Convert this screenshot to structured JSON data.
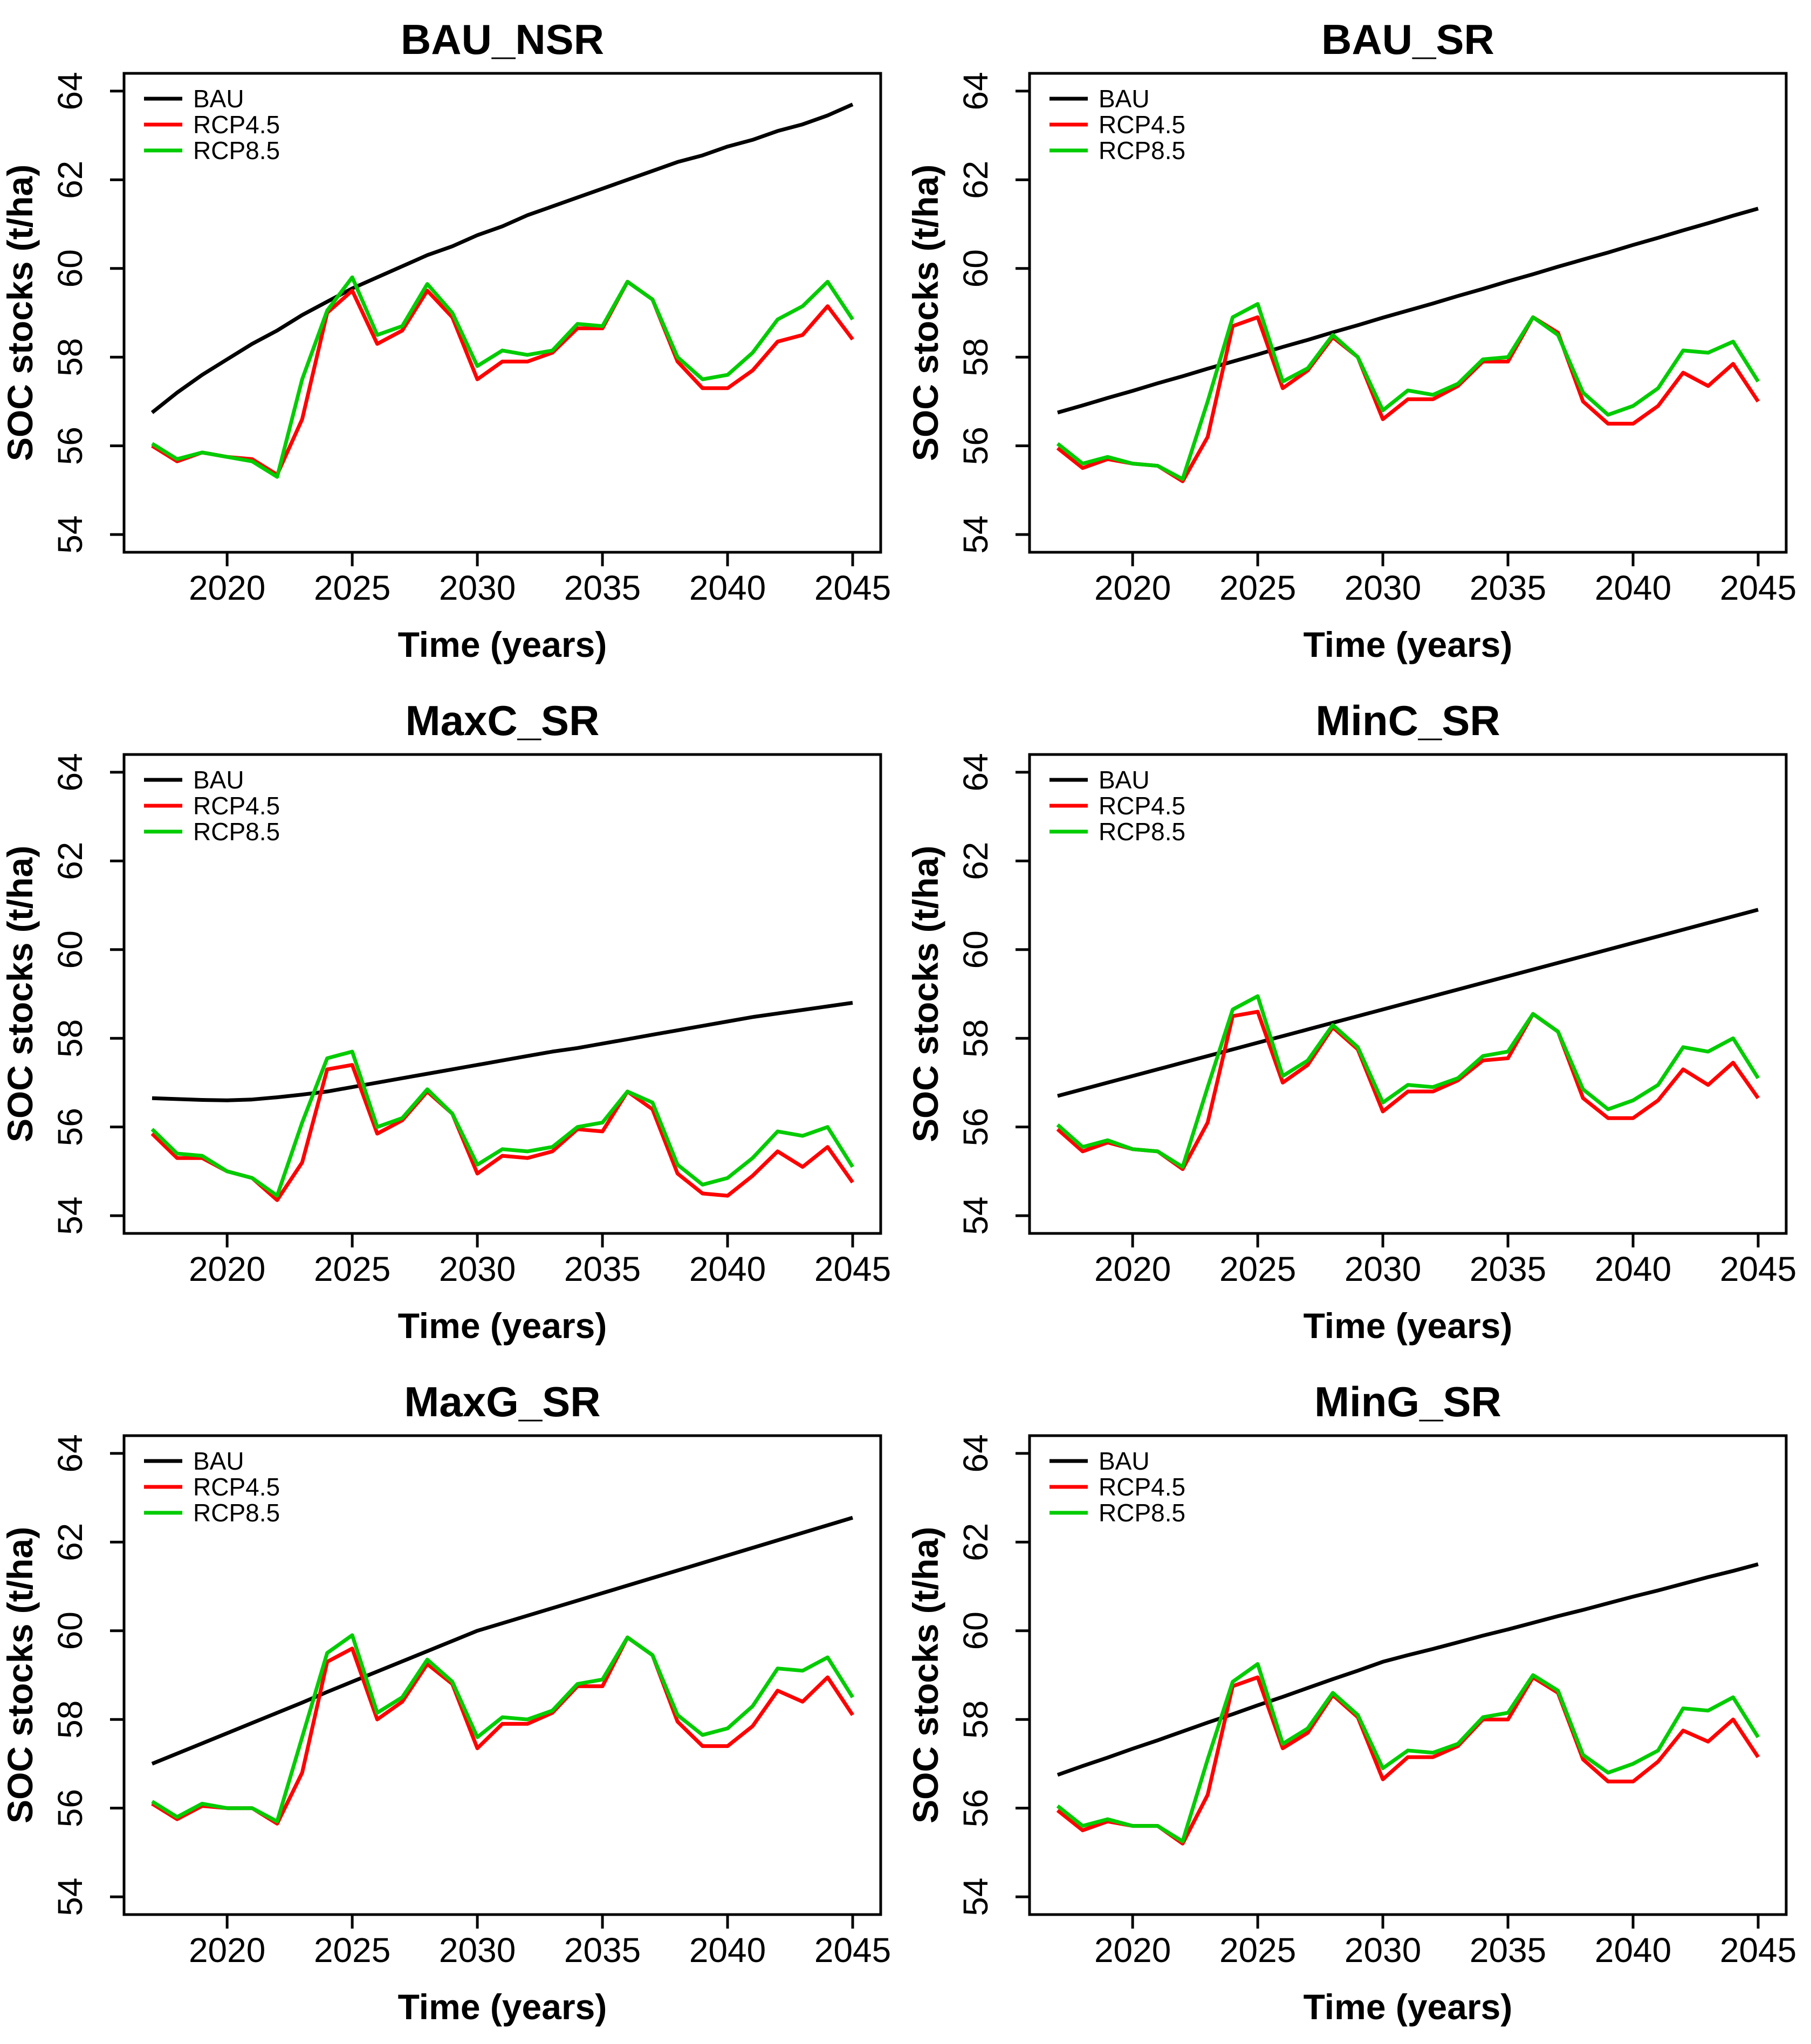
{
  "page": {
    "background": "#FFFFFF",
    "grid": {
      "columns": 2,
      "rows": 3
    }
  },
  "chart_data": [
    {
      "type": "line",
      "title": "BAU_NSR",
      "xlabel": "Time (years)",
      "ylabel": "SOC stocks (t/ha)",
      "x": [
        2017,
        2018,
        2019,
        2020,
        2021,
        2022,
        2023,
        2024,
        2025,
        2026,
        2027,
        2028,
        2029,
        2030,
        2031,
        2032,
        2033,
        2034,
        2035,
        2036,
        2037,
        2038,
        2039,
        2040,
        2041,
        2042,
        2043,
        2044,
        2045
      ],
      "xlim": [
        2015.88,
        2046.12
      ],
      "ylim": [
        53.6,
        64.4
      ],
      "xticks": [
        2020,
        2025,
        2030,
        2035,
        2040,
        2045
      ],
      "yticks": [
        54,
        56,
        58,
        60,
        62,
        64
      ],
      "grid": false,
      "legend": {
        "position": "top-left",
        "entries": [
          "BAU",
          "RCP4.5",
          "RCP8.5"
        ]
      },
      "series": [
        {
          "name": "BAU",
          "color": "#000000",
          "values": [
            56.75,
            57.2,
            57.6,
            57.95,
            58.3,
            58.6,
            58.95,
            59.25,
            59.55,
            59.8,
            60.05,
            60.3,
            60.5,
            60.75,
            60.95,
            61.2,
            61.4,
            61.6,
            61.8,
            62.0,
            62.2,
            62.4,
            62.55,
            62.75,
            62.9,
            63.1,
            63.25,
            63.45,
            63.7
          ]
        },
        {
          "name": "RCP4.5",
          "color": "#FF0000",
          "values": [
            56.0,
            55.65,
            55.85,
            55.75,
            55.7,
            55.35,
            56.6,
            59.0,
            59.5,
            58.3,
            58.6,
            59.5,
            58.9,
            57.5,
            57.9,
            57.9,
            58.1,
            58.65,
            58.65,
            59.7,
            59.3,
            57.9,
            57.3,
            57.3,
            57.7,
            58.35,
            58.5,
            59.15,
            58.4
          ]
        },
        {
          "name": "RCP8.5",
          "color": "#00CC00",
          "values": [
            56.05,
            55.7,
            55.85,
            55.75,
            55.65,
            55.3,
            57.5,
            59.05,
            59.8,
            58.5,
            58.7,
            59.65,
            59.0,
            57.8,
            58.15,
            58.05,
            58.15,
            58.75,
            58.7,
            59.7,
            59.3,
            58.0,
            57.5,
            57.6,
            58.1,
            58.85,
            59.15,
            59.7,
            58.85
          ]
        }
      ]
    },
    {
      "type": "line",
      "title": "BAU_SR",
      "xlabel": "Time (years)",
      "ylabel": "SOC stocks (t/ha)",
      "x": [
        2017,
        2018,
        2019,
        2020,
        2021,
        2022,
        2023,
        2024,
        2025,
        2026,
        2027,
        2028,
        2029,
        2030,
        2031,
        2032,
        2033,
        2034,
        2035,
        2036,
        2037,
        2038,
        2039,
        2040,
        2041,
        2042,
        2043,
        2044,
        2045
      ],
      "xlim": [
        2015.88,
        2046.12
      ],
      "ylim": [
        53.6,
        64.4
      ],
      "xticks": [
        2020,
        2025,
        2030,
        2035,
        2040,
        2045
      ],
      "yticks": [
        54,
        56,
        58,
        60,
        62,
        64
      ],
      "grid": false,
      "legend": {
        "position": "top-left",
        "entries": [
          "BAU",
          "RCP4.5",
          "RCP8.5"
        ]
      },
      "series": [
        {
          "name": "BAU",
          "color": "#000000",
          "values": [
            56.75,
            56.91,
            57.08,
            57.24,
            57.41,
            57.57,
            57.74,
            57.9,
            58.06,
            58.23,
            58.39,
            58.56,
            58.72,
            58.89,
            59.05,
            59.21,
            59.38,
            59.54,
            59.71,
            59.87,
            60.04,
            60.2,
            60.36,
            60.53,
            60.69,
            60.86,
            61.02,
            61.19,
            61.35
          ]
        },
        {
          "name": "RCP4.5",
          "color": "#FF0000",
          "values": [
            55.95,
            55.5,
            55.7,
            55.6,
            55.55,
            55.2,
            56.2,
            58.7,
            58.9,
            57.3,
            57.7,
            58.45,
            58.0,
            56.6,
            57.05,
            57.05,
            57.35,
            57.9,
            57.9,
            58.9,
            58.55,
            57.0,
            56.5,
            56.5,
            56.9,
            57.65,
            57.35,
            57.85,
            57.0
          ]
        },
        {
          "name": "RCP8.5",
          "color": "#00CC00",
          "values": [
            56.05,
            55.6,
            55.75,
            55.6,
            55.55,
            55.25,
            57.0,
            58.9,
            59.2,
            57.45,
            57.75,
            58.5,
            58.0,
            56.8,
            57.25,
            57.15,
            57.4,
            57.95,
            58.0,
            58.9,
            58.5,
            57.2,
            56.7,
            56.9,
            57.3,
            58.15,
            58.1,
            58.35,
            57.45
          ]
        }
      ]
    },
    {
      "type": "line",
      "title": "MaxC_SR",
      "xlabel": "Time (years)",
      "ylabel": "SOC stocks (t/ha)",
      "x": [
        2017,
        2018,
        2019,
        2020,
        2021,
        2022,
        2023,
        2024,
        2025,
        2026,
        2027,
        2028,
        2029,
        2030,
        2031,
        2032,
        2033,
        2034,
        2035,
        2036,
        2037,
        2038,
        2039,
        2040,
        2041,
        2042,
        2043,
        2044,
        2045
      ],
      "xlim": [
        2015.88,
        2046.12
      ],
      "ylim": [
        53.6,
        64.4
      ],
      "xticks": [
        2020,
        2025,
        2030,
        2035,
        2040,
        2045
      ],
      "yticks": [
        54,
        56,
        58,
        60,
        62,
        64
      ],
      "grid": false,
      "legend": {
        "position": "top-left",
        "entries": [
          "BAU",
          "RCP4.5",
          "RCP8.5"
        ]
      },
      "series": [
        {
          "name": "BAU",
          "color": "#000000",
          "values": [
            56.65,
            56.63,
            56.61,
            56.6,
            56.62,
            56.67,
            56.73,
            56.8,
            56.9,
            57.0,
            57.1,
            57.2,
            57.3,
            57.4,
            57.5,
            57.6,
            57.7,
            57.78,
            57.88,
            57.98,
            58.08,
            58.18,
            58.28,
            58.38,
            58.48,
            58.56,
            58.64,
            58.72,
            58.8
          ]
        },
        {
          "name": "RCP4.5",
          "color": "#FF0000",
          "values": [
            55.85,
            55.3,
            55.3,
            55.0,
            54.85,
            54.35,
            55.2,
            57.3,
            57.4,
            55.85,
            56.15,
            56.8,
            56.3,
            54.95,
            55.35,
            55.3,
            55.45,
            55.95,
            55.9,
            56.8,
            56.4,
            54.95,
            54.5,
            54.45,
            54.9,
            55.45,
            55.1,
            55.55,
            54.75
          ]
        },
        {
          "name": "RCP8.5",
          "color": "#00CC00",
          "values": [
            55.95,
            55.4,
            55.35,
            55.0,
            54.85,
            54.45,
            56.1,
            57.55,
            57.7,
            56.0,
            56.2,
            56.85,
            56.3,
            55.15,
            55.5,
            55.45,
            55.55,
            56.0,
            56.1,
            56.8,
            56.55,
            55.15,
            54.7,
            54.85,
            55.3,
            55.9,
            55.8,
            56.0,
            55.1
          ]
        }
      ]
    },
    {
      "type": "line",
      "title": "MinC_SR",
      "xlabel": "Time (years)",
      "ylabel": "SOC stocks (t/ha)",
      "x": [
        2017,
        2018,
        2019,
        2020,
        2021,
        2022,
        2023,
        2024,
        2025,
        2026,
        2027,
        2028,
        2029,
        2030,
        2031,
        2032,
        2033,
        2034,
        2035,
        2036,
        2037,
        2038,
        2039,
        2040,
        2041,
        2042,
        2043,
        2044,
        2045
      ],
      "xlim": [
        2015.88,
        2046.12
      ],
      "ylim": [
        53.6,
        64.4
      ],
      "xticks": [
        2020,
        2025,
        2030,
        2035,
        2040,
        2045
      ],
      "yticks": [
        54,
        56,
        58,
        60,
        62,
        64
      ],
      "grid": false,
      "legend": {
        "position": "top-left",
        "entries": [
          "BAU",
          "RCP4.5",
          "RCP8.5"
        ]
      },
      "series": [
        {
          "name": "BAU",
          "color": "#000000",
          "values": [
            56.7,
            56.85,
            57.0,
            57.15,
            57.3,
            57.45,
            57.6,
            57.75,
            57.9,
            58.05,
            58.2,
            58.35,
            58.5,
            58.65,
            58.8,
            58.95,
            59.1,
            59.25,
            59.4,
            59.55,
            59.7,
            59.85,
            60.0,
            60.15,
            60.3,
            60.45,
            60.6,
            60.75,
            60.9
          ]
        },
        {
          "name": "RCP4.5",
          "color": "#FF0000",
          "values": [
            55.95,
            55.45,
            55.65,
            55.5,
            55.45,
            55.05,
            56.1,
            58.5,
            58.6,
            57.0,
            57.4,
            58.25,
            57.75,
            56.35,
            56.8,
            56.8,
            57.05,
            57.5,
            57.55,
            58.55,
            58.15,
            56.65,
            56.2,
            56.2,
            56.6,
            57.3,
            56.95,
            57.45,
            56.65
          ]
        },
        {
          "name": "RCP8.5",
          "color": "#00CC00",
          "values": [
            56.05,
            55.55,
            55.7,
            55.5,
            55.45,
            55.1,
            56.9,
            58.65,
            58.95,
            57.15,
            57.5,
            58.3,
            57.8,
            56.55,
            56.95,
            56.9,
            57.1,
            57.6,
            57.7,
            58.55,
            58.15,
            56.85,
            56.4,
            56.6,
            56.95,
            57.8,
            57.7,
            58.0,
            57.1
          ]
        }
      ]
    },
    {
      "type": "line",
      "title": "MaxG_SR",
      "xlabel": "Time (years)",
      "ylabel": "SOC stocks (t/ha)",
      "x": [
        2017,
        2018,
        2019,
        2020,
        2021,
        2022,
        2023,
        2024,
        2025,
        2026,
        2027,
        2028,
        2029,
        2030,
        2031,
        2032,
        2033,
        2034,
        2035,
        2036,
        2037,
        2038,
        2039,
        2040,
        2041,
        2042,
        2043,
        2044,
        2045
      ],
      "xlim": [
        2015.88,
        2046.12
      ],
      "ylim": [
        53.6,
        64.4
      ],
      "xticks": [
        2020,
        2025,
        2030,
        2035,
        2040,
        2045
      ],
      "yticks": [
        54,
        56,
        58,
        60,
        62,
        64
      ],
      "grid": false,
      "legend": {
        "position": "top-left",
        "entries": [
          "BAU",
          "RCP4.5",
          "RCP8.5"
        ]
      },
      "series": [
        {
          "name": "BAU",
          "color": "#000000",
          "values": [
            57.0,
            57.23,
            57.46,
            57.69,
            57.92,
            58.15,
            58.38,
            58.62,
            58.85,
            59.08,
            59.31,
            59.54,
            59.77,
            60.0,
            60.17,
            60.34,
            60.51,
            60.68,
            60.85,
            61.02,
            61.19,
            61.36,
            61.53,
            61.7,
            61.87,
            62.04,
            62.21,
            62.38,
            62.55
          ]
        },
        {
          "name": "RCP4.5",
          "color": "#FF0000",
          "values": [
            56.1,
            55.75,
            56.05,
            56.0,
            56.0,
            55.65,
            56.8,
            59.3,
            59.6,
            58.0,
            58.4,
            59.25,
            58.8,
            57.35,
            57.9,
            57.9,
            58.15,
            58.75,
            58.75,
            59.85,
            59.45,
            57.95,
            57.4,
            57.4,
            57.85,
            58.65,
            58.4,
            58.95,
            58.1
          ]
        },
        {
          "name": "RCP8.5",
          "color": "#00CC00",
          "values": [
            56.15,
            55.8,
            56.1,
            56.0,
            56.0,
            55.7,
            57.6,
            59.5,
            59.9,
            58.15,
            58.5,
            59.35,
            58.85,
            57.6,
            58.05,
            58.0,
            58.2,
            58.8,
            58.9,
            59.85,
            59.45,
            58.1,
            57.65,
            57.8,
            58.3,
            59.15,
            59.1,
            59.4,
            58.5
          ]
        }
      ]
    },
    {
      "type": "line",
      "title": "MinG_SR",
      "xlabel": "Time (years)",
      "ylabel": "SOC stocks (t/ha)",
      "x": [
        2017,
        2018,
        2019,
        2020,
        2021,
        2022,
        2023,
        2024,
        2025,
        2026,
        2027,
        2028,
        2029,
        2030,
        2031,
        2032,
        2033,
        2034,
        2035,
        2036,
        2037,
        2038,
        2039,
        2040,
        2041,
        2042,
        2043,
        2044,
        2045
      ],
      "xlim": [
        2015.88,
        2046.12
      ],
      "ylim": [
        53.6,
        64.4
      ],
      "xticks": [
        2020,
        2025,
        2030,
        2035,
        2040,
        2045
      ],
      "yticks": [
        54,
        56,
        58,
        60,
        62,
        64
      ],
      "grid": false,
      "legend": {
        "position": "top-left",
        "entries": [
          "BAU",
          "RCP4.5",
          "RCP8.5"
        ]
      },
      "series": [
        {
          "name": "BAU",
          "color": "#000000",
          "values": [
            56.75,
            56.95,
            57.14,
            57.34,
            57.53,
            57.73,
            57.93,
            58.12,
            58.32,
            58.51,
            58.71,
            58.91,
            59.1,
            59.3,
            59.45,
            59.59,
            59.74,
            59.89,
            60.03,
            60.18,
            60.33,
            60.47,
            60.62,
            60.77,
            60.91,
            61.06,
            61.21,
            61.35,
            61.5
          ]
        },
        {
          "name": "RCP4.5",
          "color": "#FF0000",
          "values": [
            55.95,
            55.5,
            55.7,
            55.6,
            55.6,
            55.2,
            56.3,
            58.75,
            58.95,
            57.35,
            57.7,
            58.55,
            58.05,
            56.65,
            57.15,
            57.15,
            57.4,
            58.0,
            58.0,
            58.95,
            58.6,
            57.1,
            56.6,
            56.6,
            57.05,
            57.75,
            57.5,
            58.0,
            57.15
          ]
        },
        {
          "name": "RCP8.5",
          "color": "#00CC00",
          "values": [
            56.05,
            55.6,
            55.75,
            55.6,
            55.6,
            55.25,
            57.1,
            58.85,
            59.25,
            57.45,
            57.8,
            58.6,
            58.1,
            56.9,
            57.3,
            57.25,
            57.45,
            58.05,
            58.15,
            59.0,
            58.65,
            57.2,
            56.8,
            57.0,
            57.3,
            58.25,
            58.2,
            58.5,
            57.6
          ]
        }
      ]
    }
  ]
}
